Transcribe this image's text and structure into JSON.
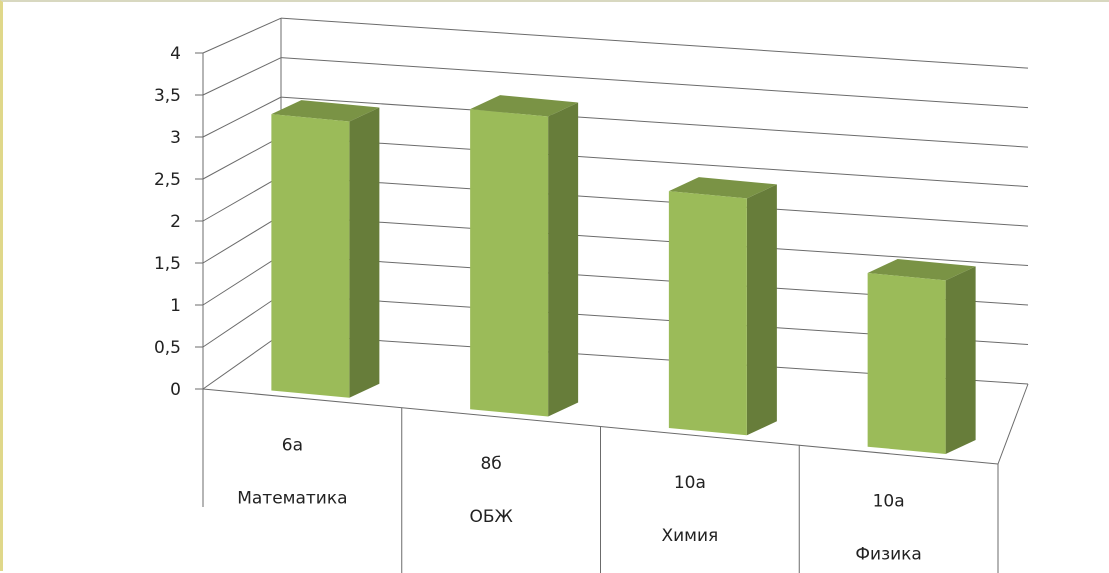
{
  "chart_data": {
    "type": "bar",
    "categories": [
      [
        "6а",
        "Математика"
      ],
      [
        "8б",
        "ОБЖ"
      ],
      [
        "10а",
        "Химия"
      ],
      [
        "10а",
        "Физика"
      ]
    ],
    "values": [
      3.5,
      3.8,
      3.0,
      2.2
    ],
    "ylim": [
      0,
      4
    ],
    "yticks": [
      "0",
      "0,5",
      "1",
      "1,5",
      "2",
      "2,5",
      "3",
      "3,5",
      "4"
    ],
    "grid": true,
    "colors": {
      "bar_front": "#9bbb59",
      "bar_side": "#677d3a",
      "bar_top": "#7a9345"
    }
  }
}
